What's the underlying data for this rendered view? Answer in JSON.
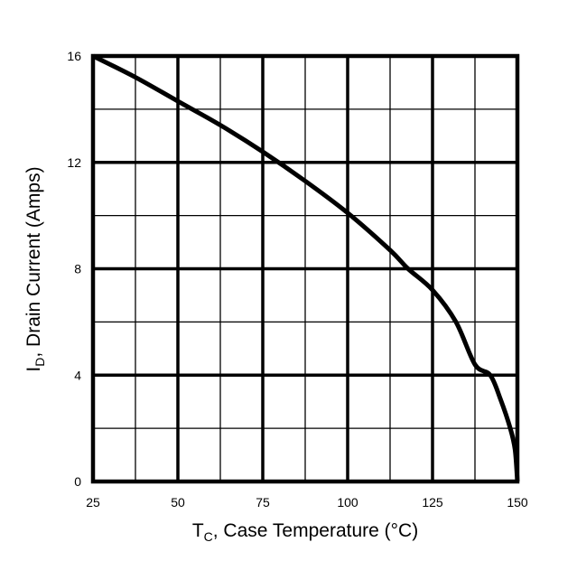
{
  "chart_data": {
    "type": "line",
    "xlabel": {
      "main": "T",
      "sub": "C",
      "rest": ", Case Temperature (°C)"
    },
    "ylabel": {
      "main": "I",
      "sub": "D",
      "rest": ", Drain Current (Amps)"
    },
    "xlim": [
      25,
      150
    ],
    "ylim": [
      0,
      16
    ],
    "xticks": [
      "25",
      "50",
      "75",
      "100",
      "125",
      "150"
    ],
    "yticks": [
      "0",
      "4",
      "8",
      "12",
      "16"
    ],
    "grid": true,
    "series": [
      {
        "x": [
          25,
          37.5,
          50,
          62.5,
          75,
          87.5,
          100,
          112.5,
          117.8,
          125,
          131.9,
          137.5,
          142,
          145,
          147.9,
          149.3,
          150
        ],
        "y": [
          16,
          15.2,
          14.3,
          13.4,
          12.4,
          11.3,
          10.1,
          8.7,
          8,
          7.2,
          6,
          4.4,
          4,
          3.1,
          2,
          1.2,
          0
        ]
      }
    ],
    "line_color": "#000000"
  }
}
